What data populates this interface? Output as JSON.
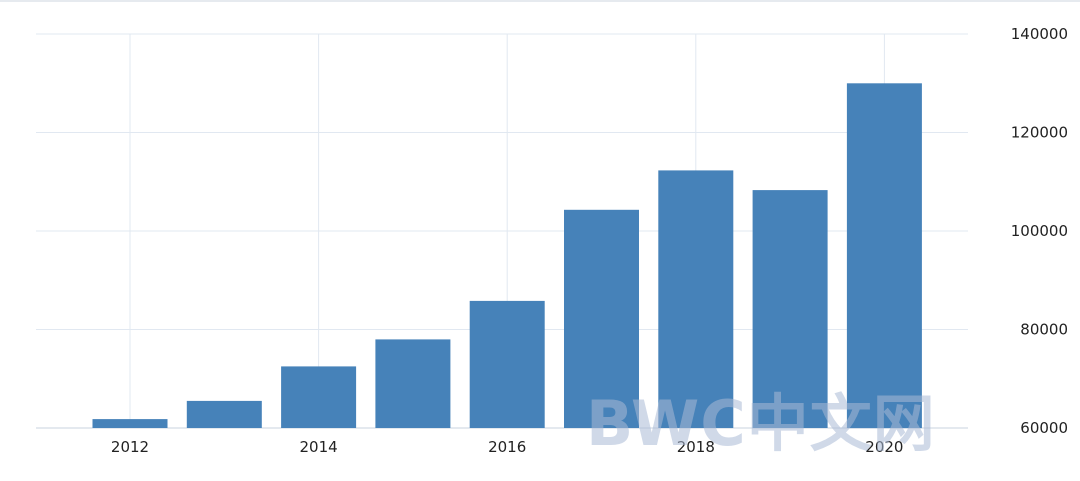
{
  "chart_data": {
    "type": "bar",
    "categories": [
      "2012",
      "2013",
      "2014",
      "2015",
      "2016",
      "2017",
      "2018",
      "2019",
      "2020"
    ],
    "values": [
      61800,
      65500,
      72500,
      78000,
      85800,
      104300,
      112300,
      108300,
      130000
    ],
    "x_tick_labels": [
      "2012",
      "2014",
      "2016",
      "2018",
      "2020"
    ],
    "y_tick_labels": [
      "60000",
      "80000",
      "100000",
      "120000",
      "140000"
    ],
    "title": "",
    "xlabel": "",
    "ylabel": "",
    "ylim": [
      60000,
      140000
    ],
    "y_axis_position": "right",
    "grid": true,
    "bar_color": "#4682b9",
    "grid_color": "#e1e8f1"
  },
  "watermark": {
    "text": "BWC中文网"
  }
}
